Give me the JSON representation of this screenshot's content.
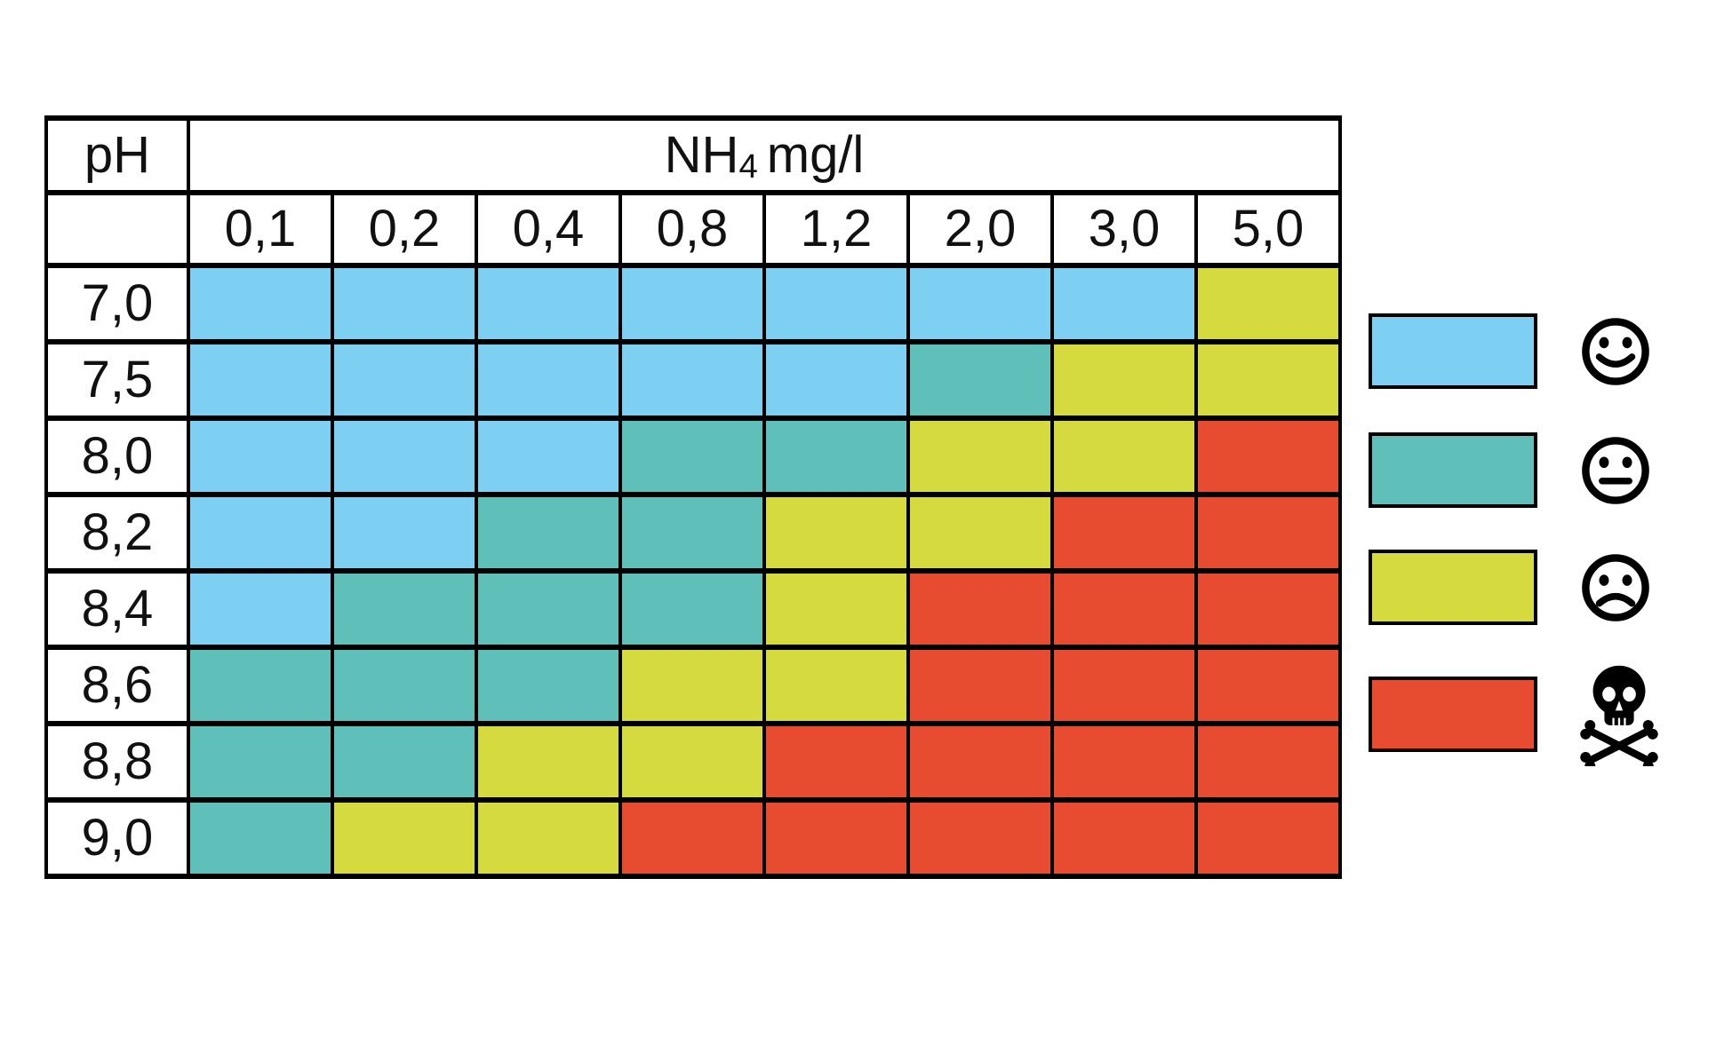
{
  "page": {
    "background": "#FFFFFF"
  },
  "colors": {
    "good": "#7DD0F1",
    "caution": "#5EC0B8",
    "bad": "#D5DB3E",
    "lethal": "#E74C31",
    "border": "#000000",
    "text": "#111111"
  },
  "chart_data": {
    "type": "heatmap",
    "corner_label": "pH",
    "x_axis_title": {
      "base": "NH",
      "subscript": "4",
      "unit": "mg/l"
    },
    "x_axis_title_text": "NH4 mg/l",
    "x_categories": [
      "0,1",
      "0,2",
      "0,4",
      "0,8",
      "1,2",
      "2,0",
      "3,0",
      "5,0"
    ],
    "y_categories": [
      "7,0",
      "7,5",
      "8,0",
      "8,2",
      "8,4",
      "8,6",
      "8,8",
      "9,0"
    ],
    "levels": [
      "good",
      "caution",
      "bad",
      "lethal"
    ],
    "cells": [
      [
        "good",
        "good",
        "good",
        "good",
        "good",
        "good",
        "good",
        "bad"
      ],
      [
        "good",
        "good",
        "good",
        "good",
        "good",
        "caution",
        "bad",
        "bad"
      ],
      [
        "good",
        "good",
        "good",
        "caution",
        "caution",
        "bad",
        "bad",
        "lethal"
      ],
      [
        "good",
        "good",
        "caution",
        "caution",
        "bad",
        "bad",
        "lethal",
        "lethal"
      ],
      [
        "good",
        "caution",
        "caution",
        "caution",
        "bad",
        "lethal",
        "lethal",
        "lethal"
      ],
      [
        "caution",
        "caution",
        "caution",
        "bad",
        "bad",
        "lethal",
        "lethal",
        "lethal"
      ],
      [
        "caution",
        "caution",
        "bad",
        "bad",
        "lethal",
        "lethal",
        "lethal",
        "lethal"
      ],
      [
        "caution",
        "bad",
        "bad",
        "lethal",
        "lethal",
        "lethal",
        "lethal",
        "lethal"
      ]
    ],
    "legend": [
      {
        "level": "good",
        "icon": "smiling-face-icon"
      },
      {
        "level": "caution",
        "icon": "neutral-face-icon"
      },
      {
        "level": "bad",
        "icon": "frowning-face-icon"
      },
      {
        "level": "lethal",
        "icon": "skull-and-crossbones-icon"
      }
    ]
  }
}
